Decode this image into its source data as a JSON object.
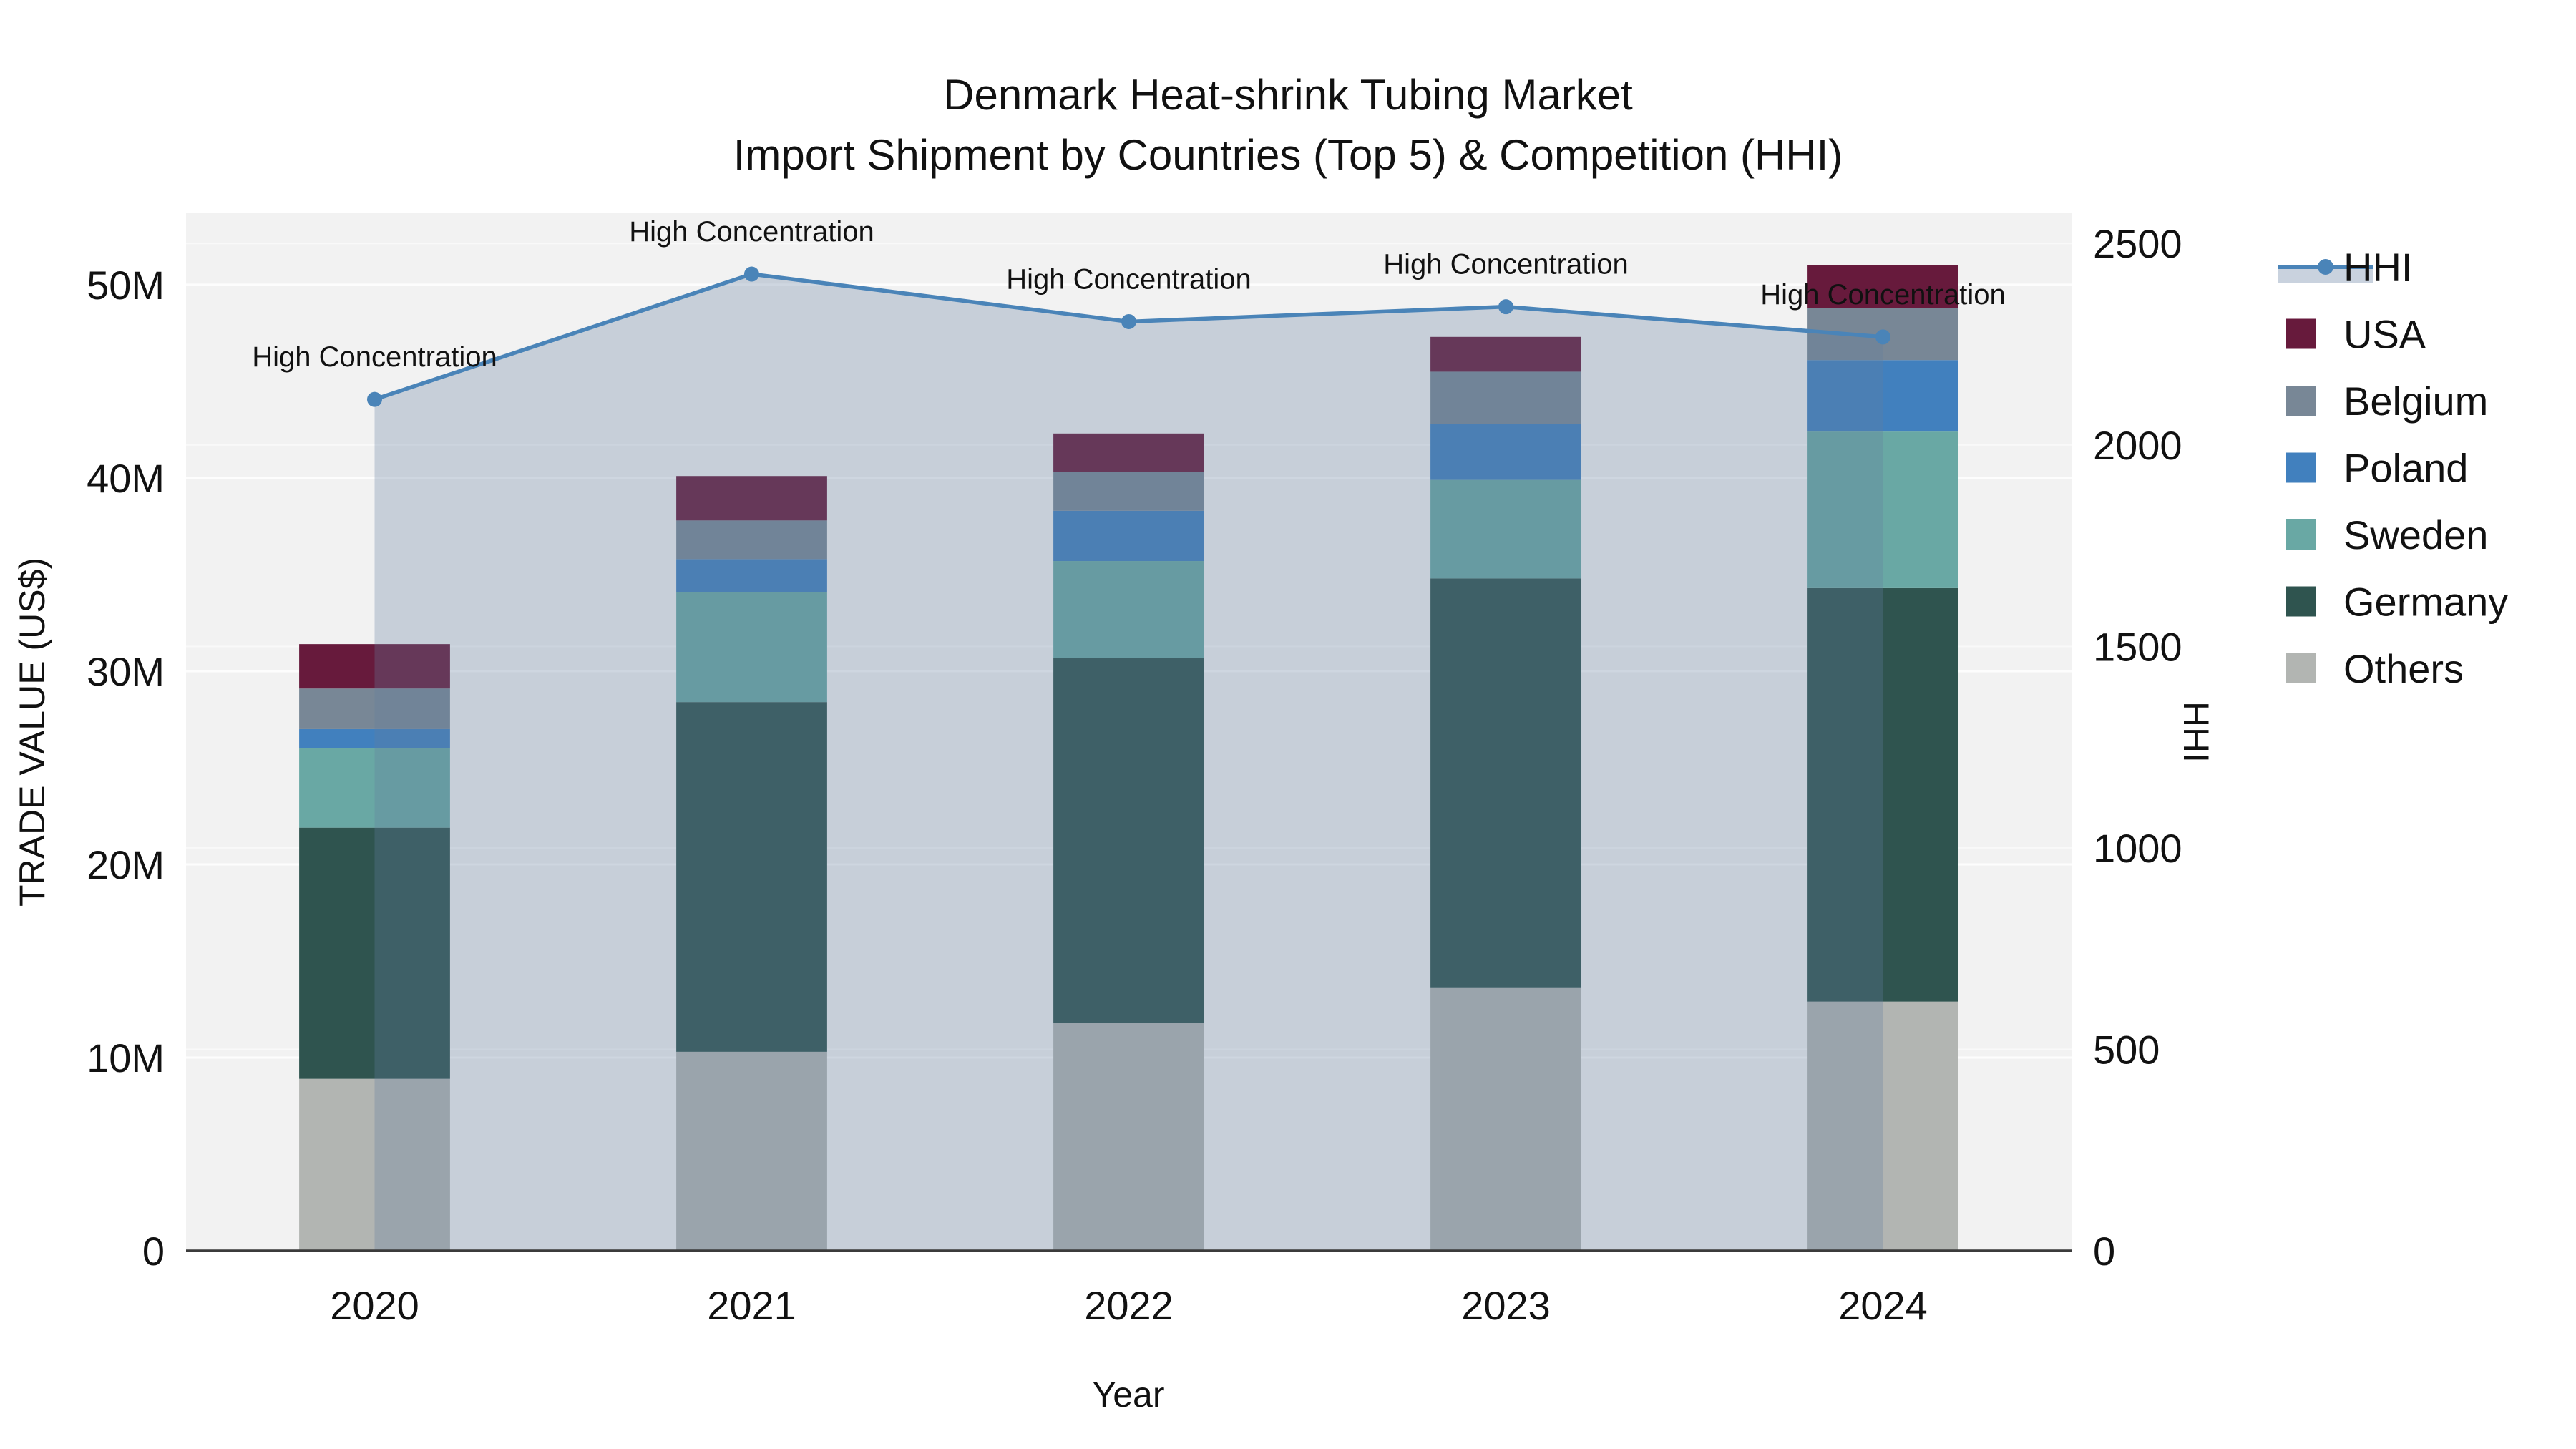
{
  "title": {
    "line1": "Denmark Heat-shrink Tubing Market",
    "line2": "Import Shipment by Countries (Top 5) & Competition (HHI)"
  },
  "axes": {
    "x": {
      "title": "Year",
      "categories": [
        "2020",
        "2021",
        "2022",
        "2023",
        "2024"
      ]
    },
    "left": {
      "title": "TRADE VALUE (US$)",
      "tick_labels": [
        "0",
        "10M",
        "20M",
        "30M",
        "40M",
        "50M"
      ],
      "tick_values_musd": [
        0,
        10,
        20,
        30,
        40,
        50
      ],
      "max_musd": 53.7,
      "grid": true
    },
    "right": {
      "title": "HHI",
      "tick_labels": [
        "0",
        "500",
        "1000",
        "1500",
        "2000",
        "2500"
      ],
      "tick_values": [
        0,
        500,
        1000,
        1500,
        2000,
        2500
      ],
      "max": 2575,
      "grid": true
    }
  },
  "chart_data": {
    "type": "combo: stacked bar + line",
    "categories": [
      "2020",
      "2021",
      "2022",
      "2023",
      "2024"
    ],
    "bar_unit": "million US$",
    "bar_series_bottom_to_top": [
      {
        "name": "Others",
        "color": "#b2b5b2",
        "values": [
          8.9,
          10.3,
          11.8,
          13.6,
          12.9
        ]
      },
      {
        "name": "Germany",
        "color": "#2f544f",
        "values": [
          13.0,
          18.1,
          18.9,
          21.2,
          21.4
        ]
      },
      {
        "name": "Sweden",
        "color": "#69a8a4",
        "values": [
          4.1,
          5.7,
          5.0,
          5.1,
          8.1
        ]
      },
      {
        "name": "Poland",
        "color": "#4180be",
        "values": [
          1.0,
          1.7,
          2.6,
          2.9,
          3.7
        ]
      },
      {
        "name": "Belgium",
        "color": "#788796",
        "values": [
          2.1,
          2.0,
          2.0,
          2.7,
          2.7
        ]
      },
      {
        "name": "USA",
        "color": "#671a3c",
        "values": [
          2.3,
          2.3,
          2.0,
          1.8,
          2.2
        ]
      }
    ],
    "bar_totals_musd": [
      31.4,
      40.1,
      42.3,
      47.3,
      51.0
    ],
    "line_series": {
      "name": "HHI",
      "color": "#4a84b8",
      "values": [
        2113,
        2424,
        2306,
        2343,
        2268
      ],
      "axis": "right",
      "area_fill": "#647da0",
      "area_opacity": 0.3
    },
    "annotations": [
      {
        "category": "2020",
        "text": "High Concentration"
      },
      {
        "category": "2021",
        "text": "High Concentration"
      },
      {
        "category": "2022",
        "text": "High Concentration"
      },
      {
        "category": "2023",
        "text": "High Concentration"
      },
      {
        "category": "2024",
        "text": "High Concentration"
      }
    ],
    "legend_order": [
      "HHI",
      "USA",
      "Belgium",
      "Poland",
      "Sweden",
      "Germany",
      "Others"
    ],
    "legend_position": "right"
  },
  "colors": {
    "plot_bg": "#f2f2f2",
    "grid": "#ffffff",
    "baseline": "#3b3b3b",
    "text": "#111111"
  }
}
